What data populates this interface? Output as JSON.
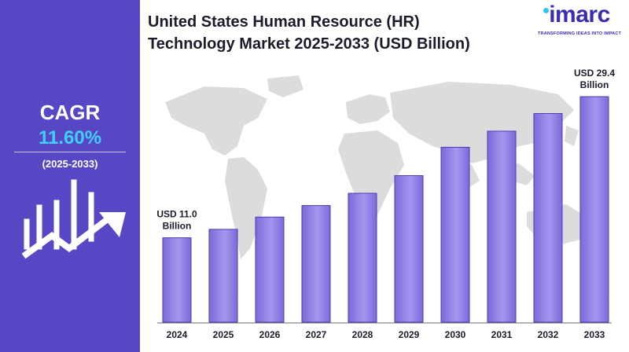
{
  "title_line1": "United States Human Resource (HR)",
  "title_line2": "Technology Market 2025-2033 (USD Billion)",
  "logo": {
    "name": "imarc",
    "tagline": "TRANSFORMING IDEAS INTO IMPACT"
  },
  "cagr": {
    "label": "CAGR",
    "value": "11.60%",
    "period": "(2025-2033)"
  },
  "colors": {
    "panel": "#5847c4",
    "bar": "#7a6ad9",
    "bar_highlight": "#a597ee",
    "cagr_value": "#3fd0ff",
    "map": "#dcdcdc"
  },
  "icons": {
    "growth": "bar-chart-growth-arrow-icon",
    "map": "world-map"
  },
  "chart_data": {
    "type": "bar",
    "categories": [
      "2024",
      "2025",
      "2026",
      "2027",
      "2028",
      "2029",
      "2030",
      "2031",
      "2032",
      "2033"
    ],
    "values": [
      11.0,
      12.1,
      13.7,
      15.2,
      16.8,
      19.1,
      22.8,
      24.9,
      27.2,
      29.4
    ],
    "data_labels": [
      {
        "index": 0,
        "line1": "USD 11.0",
        "line2": "Billion"
      },
      {
        "index": 9,
        "line1": "USD 29.4",
        "line2": "Billion"
      }
    ],
    "ylim": [
      0,
      30
    ],
    "grid": false,
    "legend": "none"
  }
}
